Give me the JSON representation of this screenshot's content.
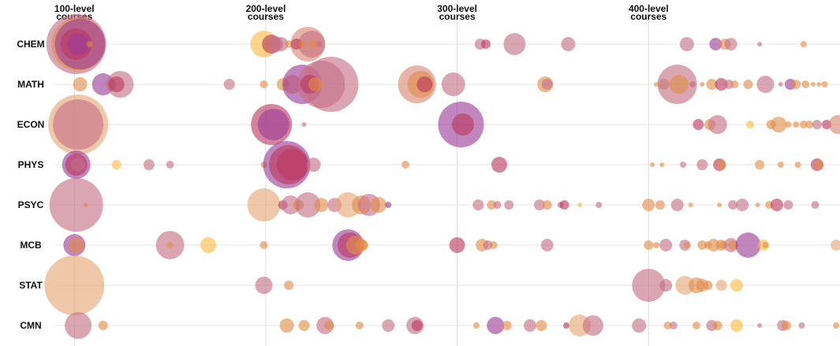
{
  "chart_data": {
    "type": "scatter",
    "columns": [
      {
        "key": 100,
        "line1": "100-level",
        "line2": "courses"
      },
      {
        "key": 200,
        "line1": "200-level",
        "line2": "courses"
      },
      {
        "key": 300,
        "line1": "300-level",
        "line2": "courses"
      },
      {
        "key": 400,
        "line1": "400-level",
        "line2": "courses"
      }
    ],
    "rows": [
      "CHEM",
      "MATH",
      "ECON",
      "PHYS",
      "PSYC",
      "MCB",
      "STAT",
      "CMN"
    ],
    "x_range": [
      90,
      500
    ],
    "grid": {
      "horizontal": true,
      "vertical": true
    },
    "colors": {
      "rose": "#c56f86",
      "purple": "#9d3c97",
      "orange": "#e08d49",
      "peach": "#e5a674",
      "yellow": "#fdb944",
      "crimson": "#b9385e",
      "salmon": "#d98872"
    },
    "series": [
      {
        "row": "CHEM",
        "points": [
          [
            101,
            38,
            "rose"
          ],
          [
            102,
            34,
            "orange"
          ],
          [
            103,
            32,
            "purple"
          ],
          [
            101,
            20,
            "crimson"
          ],
          [
            102,
            14,
            "purple"
          ],
          [
            108,
            4,
            "orange"
          ],
          [
            199,
            17,
            "yellow"
          ],
          [
            203,
            12,
            "crimson"
          ],
          [
            205,
            10,
            "rose"
          ],
          [
            208,
            9,
            "rose"
          ],
          [
            212,
            5,
            "orange"
          ],
          [
            222,
            22,
            "salmon"
          ],
          [
            224,
            17,
            "rose"
          ],
          [
            225,
            6,
            "orange"
          ],
          [
            216,
            7,
            "crimson"
          ],
          [
            219,
            5,
            "orange"
          ],
          [
            228,
            4,
            "rose"
          ],
          [
            312,
            7,
            "rose"
          ],
          [
            315,
            6,
            "crimson"
          ],
          [
            330,
            14,
            "rose"
          ],
          [
            358,
            9,
            "rose"
          ],
          [
            420,
            9,
            "rose"
          ],
          [
            435,
            8,
            "purple"
          ],
          [
            440,
            7,
            "orange"
          ],
          [
            443,
            8,
            "rose"
          ],
          [
            458,
            3,
            "rose"
          ],
          [
            481,
            4,
            "orange"
          ]
        ]
      },
      {
        "row": "MATH",
        "points": [
          [
            103,
            9,
            "orange"
          ],
          [
            115,
            14,
            "purple"
          ],
          [
            119,
            7,
            "rose"
          ],
          [
            124,
            17,
            "rose"
          ],
          [
            122,
            10,
            "crimson"
          ],
          [
            181,
            7,
            "rose"
          ],
          [
            199,
            5,
            "orange"
          ],
          [
            209,
            8,
            "orange"
          ],
          [
            214,
            12,
            "orange"
          ],
          [
            219,
            25,
            "purple"
          ],
          [
            229,
            30,
            "rose"
          ],
          [
            234,
            35,
            "rose"
          ],
          [
            223,
            12,
            "crimson"
          ],
          [
            226,
            9,
            "orange"
          ],
          [
            279,
            24,
            "salmon"
          ],
          [
            281,
            17,
            "orange"
          ],
          [
            283,
            10,
            "crimson"
          ],
          [
            298,
            15,
            "rose"
          ],
          [
            346,
            10,
            "orange"
          ],
          [
            347,
            7,
            "rose"
          ],
          [
            404,
            3,
            "orange"
          ],
          [
            408,
            7,
            "orange"
          ],
          [
            415,
            25,
            "rose"
          ],
          [
            416,
            12,
            "orange"
          ],
          [
            423,
            4,
            "rose"
          ],
          [
            428,
            3,
            "orange"
          ],
          [
            433,
            7,
            "orange"
          ],
          [
            438,
            8,
            "crimson"
          ],
          [
            442,
            6,
            "rose"
          ],
          [
            445,
            5,
            "orange"
          ],
          [
            452,
            6,
            "orange"
          ],
          [
            461,
            11,
            "rose"
          ],
          [
            469,
            3,
            "rose"
          ],
          [
            474,
            7,
            "purple"
          ],
          [
            477,
            6,
            "orange"
          ],
          [
            482,
            5,
            "orange"
          ],
          [
            486,
            3,
            "orange"
          ],
          [
            489,
            3,
            "orange"
          ],
          [
            492,
            4,
            "orange"
          ]
        ]
      },
      {
        "row": "ECON",
        "points": [
          [
            102,
            38,
            "peach"
          ],
          [
            102,
            32,
            "rose"
          ],
          [
            203,
            26,
            "crimson"
          ],
          [
            204,
            20,
            "purple"
          ],
          [
            220,
            3,
            "rose"
          ],
          [
            302,
            29,
            "purple"
          ],
          [
            303,
            14,
            "crimson"
          ],
          [
            426,
            7,
            "crimson"
          ],
          [
            432,
            7,
            "orange"
          ],
          [
            436,
            12,
            "rose"
          ],
          [
            453,
            5,
            "yellow"
          ],
          [
            464,
            6,
            "orange"
          ],
          [
            468,
            10,
            "orange"
          ],
          [
            473,
            4,
            "orange"
          ],
          [
            477,
            4,
            "orange"
          ],
          [
            481,
            5,
            "orange"
          ],
          [
            484,
            5,
            "orange"
          ],
          [
            488,
            6,
            "rose"
          ],
          [
            493,
            6,
            "crimson"
          ],
          [
            499,
            12,
            "salmon"
          ]
        ]
      },
      {
        "row": "PHYS",
        "points": [
          [
            101,
            18,
            "purple"
          ],
          [
            101,
            14,
            "crimson"
          ],
          [
            102,
            9,
            "rose"
          ],
          [
            122,
            6,
            "yellow"
          ],
          [
            139,
            7,
            "rose"
          ],
          [
            150,
            5,
            "rose"
          ],
          [
            199,
            4,
            "orange"
          ],
          [
            211,
            30,
            "purple"
          ],
          [
            212,
            25,
            "crimson"
          ],
          [
            214,
            20,
            "crimson"
          ],
          [
            225,
            9,
            "rose"
          ],
          [
            273,
            5,
            "orange"
          ],
          [
            322,
            10,
            "crimson"
          ],
          [
            402,
            3,
            "orange"
          ],
          [
            407,
            3,
            "orange"
          ],
          [
            418,
            4,
            "rose"
          ],
          [
            428,
            7,
            "rose"
          ],
          [
            437,
            8,
            "crimson"
          ],
          [
            438,
            6,
            "orange"
          ],
          [
            458,
            6,
            "orange"
          ],
          [
            469,
            4,
            "orange"
          ],
          [
            478,
            4,
            "orange"
          ],
          [
            488,
            8,
            "crimson"
          ],
          [
            489,
            6,
            "orange"
          ]
        ]
      },
      {
        "row": "PSYC",
        "points": [
          [
            101,
            34,
            "rose"
          ],
          [
            106,
            3,
            "orange"
          ],
          [
            199,
            21,
            "peach"
          ],
          [
            209,
            6,
            "crimson"
          ],
          [
            213,
            12,
            "rose"
          ],
          [
            217,
            7,
            "orange"
          ],
          [
            222,
            16,
            "rose"
          ],
          [
            229,
            9,
            "orange"
          ],
          [
            236,
            9,
            "rose"
          ],
          [
            243,
            16,
            "peach"
          ],
          [
            250,
            12,
            "orange"
          ],
          [
            254,
            14,
            "rose"
          ],
          [
            259,
            10,
            "orange"
          ],
          [
            264,
            4,
            "purple"
          ],
          [
            311,
            7,
            "rose"
          ],
          [
            318,
            6,
            "orange"
          ],
          [
            321,
            5,
            "rose"
          ],
          [
            327,
            6,
            "rose"
          ],
          [
            343,
            7,
            "rose"
          ],
          [
            347,
            6,
            "orange"
          ],
          [
            354,
            4,
            "rose"
          ],
          [
            356,
            6,
            "crimson"
          ],
          [
            364,
            3,
            "yellow"
          ],
          [
            374,
            4,
            "rose"
          ],
          [
            400,
            8,
            "orange"
          ],
          [
            406,
            6,
            "orange"
          ],
          [
            415,
            8,
            "rose"
          ],
          [
            422,
            3,
            "orange"
          ],
          [
            437,
            3,
            "orange"
          ],
          [
            444,
            6,
            "rose"
          ],
          [
            449,
            8,
            "rose"
          ],
          [
            457,
            3,
            "orange"
          ],
          [
            463,
            5,
            "orange"
          ],
          [
            467,
            8,
            "crimson"
          ],
          [
            473,
            6,
            "rose"
          ],
          [
            487,
            5,
            "rose"
          ]
        ]
      },
      {
        "row": "MCB",
        "points": [
          [
            100,
            14,
            "purple"
          ],
          [
            101,
            10,
            "orange"
          ],
          [
            150,
            18,
            "rose"
          ],
          [
            150,
            4,
            "orange"
          ],
          [
            170,
            10,
            "yellow"
          ],
          [
            199,
            5,
            "orange"
          ],
          [
            243,
            20,
            "purple"
          ],
          [
            244,
            16,
            "crimson"
          ],
          [
            247,
            12,
            "orange"
          ],
          [
            250,
            8,
            "orange"
          ],
          [
            251,
            6,
            "orange"
          ],
          [
            300,
            10,
            "crimson"
          ],
          [
            313,
            8,
            "orange"
          ],
          [
            316,
            6,
            "rose"
          ],
          [
            319,
            5,
            "orange"
          ],
          [
            347,
            8,
            "rose"
          ],
          [
            400,
            6,
            "orange"
          ],
          [
            404,
            4,
            "orange"
          ],
          [
            409,
            8,
            "rose"
          ],
          [
            419,
            7,
            "rose"
          ],
          [
            420,
            4,
            "orange"
          ],
          [
            428,
            6,
            "orange"
          ],
          [
            431,
            5,
            "orange"
          ],
          [
            434,
            8,
            "orange"
          ],
          [
            438,
            7,
            "orange"
          ],
          [
            439,
            5,
            "orange"
          ],
          [
            443,
            9,
            "rose"
          ],
          [
            444,
            6,
            "orange"
          ],
          [
            452,
            16,
            "purple"
          ],
          [
            460,
            7,
            "yellow"
          ],
          [
            461,
            4,
            "orange"
          ],
          [
            498,
            7,
            "peach"
          ]
        ]
      },
      {
        "row": "STAT",
        "points": [
          [
            100,
            38,
            "peach"
          ],
          [
            199,
            11,
            "rose"
          ],
          [
            212,
            6,
            "orange"
          ],
          [
            400,
            21,
            "rose"
          ],
          [
            409,
            8,
            "rose"
          ],
          [
            419,
            12,
            "peach"
          ],
          [
            425,
            10,
            "orange"
          ],
          [
            428,
            8,
            "orange"
          ],
          [
            431,
            6,
            "orange"
          ],
          [
            438,
            7,
            "peach"
          ],
          [
            446,
            8,
            "yellow"
          ]
        ]
      },
      {
        "row": "CMN",
        "points": [
          [
            102,
            17,
            "rose"
          ],
          [
            115,
            6,
            "orange"
          ],
          [
            211,
            9,
            "orange"
          ],
          [
            220,
            7,
            "orange"
          ],
          [
            231,
            11,
            "rose"
          ],
          [
            233,
            6,
            "orange"
          ],
          [
            249,
            5,
            "orange"
          ],
          [
            264,
            8,
            "rose"
          ],
          [
            278,
            11,
            "rose"
          ],
          [
            279,
            7,
            "crimson"
          ],
          [
            310,
            4,
            "orange"
          ],
          [
            320,
            11,
            "purple"
          ],
          [
            326,
            6,
            "orange"
          ],
          [
            338,
            8,
            "rose"
          ],
          [
            344,
            7,
            "orange"
          ],
          [
            357,
            4,
            "crimson"
          ],
          [
            364,
            14,
            "peach"
          ],
          [
            371,
            13,
            "rose"
          ],
          [
            395,
            9,
            "rose"
          ],
          [
            410,
            5,
            "orange"
          ],
          [
            413,
            5,
            "rose"
          ],
          [
            425,
            5,
            "orange"
          ],
          [
            433,
            7,
            "rose"
          ],
          [
            436,
            6,
            "orange"
          ],
          [
            446,
            8,
            "yellow"
          ],
          [
            458,
            3,
            "rose"
          ],
          [
            470,
            7,
            "rose"
          ],
          [
            472,
            6,
            "orange"
          ],
          [
            480,
            4,
            "rose"
          ],
          [
            498,
            4,
            "orange"
          ]
        ]
      }
    ]
  }
}
